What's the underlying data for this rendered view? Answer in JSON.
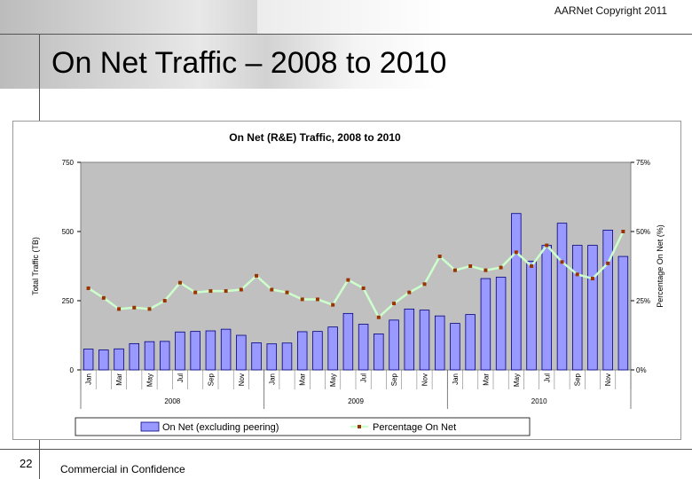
{
  "header": {
    "copyright": "AARNet Copyright 2011"
  },
  "slide": {
    "title": "On Net Traffic – 2008 to 2010"
  },
  "footer": {
    "page_number": "22",
    "confidential": "Commercial in Confidence"
  },
  "colors": {
    "bar": "#9999ff",
    "bar_stroke": "#000080",
    "line": "#ccffcc",
    "marker": "#993300",
    "plot_bg": "#c0c0c0"
  },
  "chart_data": {
    "type": "bar",
    "title": "On Net (R&E) Traffic, 2008 to 2010",
    "ylabel": "Total Traffic (TB)",
    "y2label": "Percentage On Net (%)",
    "ylim": [
      0,
      750
    ],
    "y2lim": [
      0,
      75
    ],
    "yticks": [
      "0",
      "250",
      "500",
      "750"
    ],
    "y2ticks": [
      "0%",
      "25%",
      "50%",
      "75%"
    ],
    "month_labels": [
      "Jan",
      "Mar",
      "May",
      "Jul",
      "Sep",
      "Nov",
      "Jan",
      "Mar",
      "May",
      "Jul",
      "Sep",
      "Nov",
      "Jan",
      "Mar",
      "May",
      "Jul",
      "Sep",
      "Nov"
    ],
    "years": [
      "2008",
      "2009",
      "2010"
    ],
    "series": [
      {
        "name": "On Net (excluding peering)",
        "kind": "bar",
        "values": [
          75,
          72,
          76,
          95,
          102,
          103,
          137,
          139,
          141,
          147,
          125,
          98,
          94,
          97,
          138,
          139,
          155,
          204,
          165,
          130,
          180,
          220,
          216,
          195,
          168,
          200,
          330,
          335,
          565,
          393,
          450,
          530,
          450,
          450,
          505,
          410
        ]
      },
      {
        "name": "Percentage On Net",
        "kind": "line",
        "axis": "right",
        "values": [
          29.5,
          26,
          22,
          22.5,
          22,
          25,
          31.5,
          28,
          28.5,
          28.5,
          29,
          34,
          29,
          28,
          25.5,
          25.5,
          23.5,
          32.5,
          29.5,
          19,
          24,
          28,
          31,
          41,
          36,
          37.5,
          36,
          37,
          42.5,
          37.5,
          45,
          39,
          34.5,
          33,
          38.5,
          50
        ]
      }
    ],
    "legend_position": "bottom"
  }
}
